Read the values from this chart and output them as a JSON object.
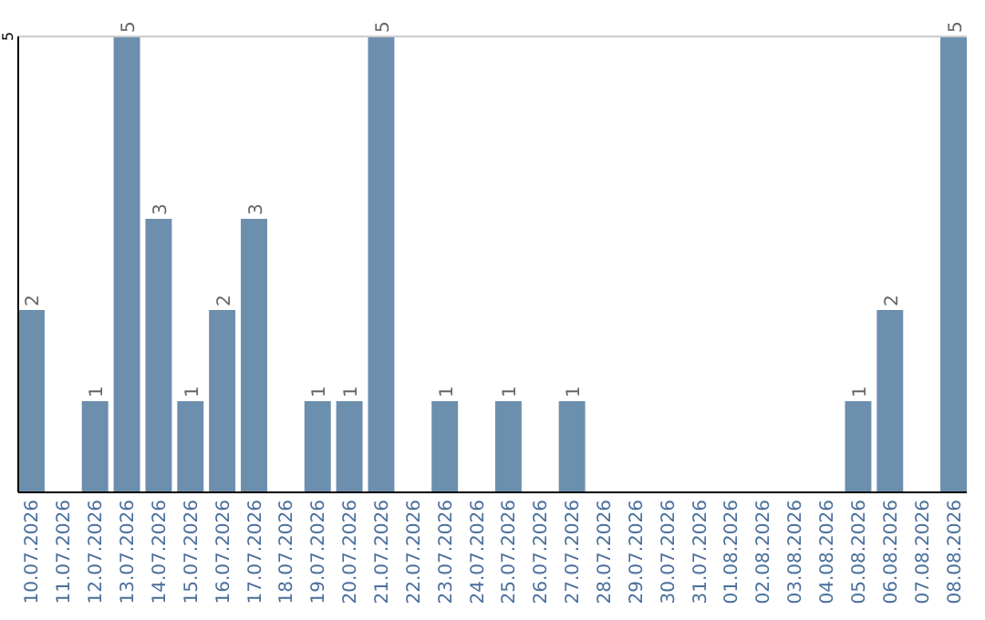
{
  "chart_data": {
    "type": "bar",
    "categories": [
      "10.07.2026",
      "11.07.2026",
      "12.07.2026",
      "13.07.2026",
      "14.07.2026",
      "15.07.2026",
      "16.07.2026",
      "17.07.2026",
      "18.07.2026",
      "19.07.2026",
      "20.07.2026",
      "21.07.2026",
      "22.07.2026",
      "23.07.2026",
      "24.07.2026",
      "25.07.2026",
      "26.07.2026",
      "27.07.2026",
      "28.07.2026",
      "29.07.2026",
      "30.07.2026",
      "31.07.2026",
      "01.08.2026",
      "02.08.2026",
      "03.08.2026",
      "04.08.2026",
      "05.08.2026",
      "06.08.2026",
      "07.08.2026",
      "08.08.2026"
    ],
    "values": [
      2,
      0,
      1,
      5,
      3,
      1,
      2,
      3,
      0,
      1,
      1,
      5,
      0,
      1,
      0,
      1,
      0,
      1,
      0,
      0,
      0,
      0,
      0,
      0,
      0,
      0,
      1,
      2,
      0,
      5
    ],
    "value_labels": [
      "2",
      null,
      "1",
      "5",
      "3",
      "1",
      "2",
      "3",
      null,
      "1",
      "1",
      "5",
      null,
      "1",
      null,
      "1",
      null,
      "1",
      null,
      null,
      null,
      null,
      null,
      null,
      null,
      null,
      "1",
      "2",
      null,
      "5"
    ],
    "color": "#6d8fae",
    "ylim": [
      0,
      5
    ],
    "yticks": [
      5
    ]
  }
}
